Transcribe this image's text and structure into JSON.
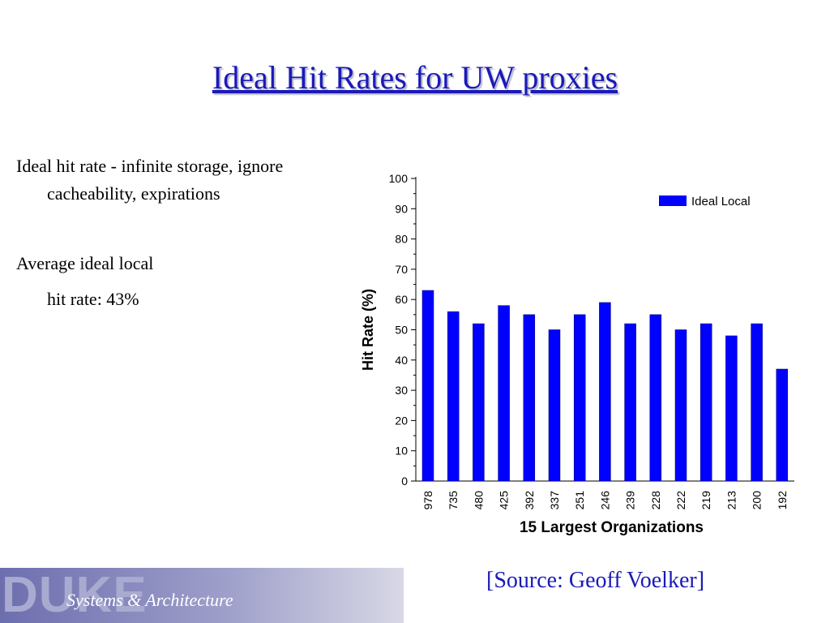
{
  "slide": {
    "title": "Ideal Hit Rates for UW proxies",
    "bullet1_line1": "Ideal hit rate - infinite storage, ignore",
    "bullet1_line2": "cacheability, expirations",
    "bullet2_line1": "Average ideal local",
    "bullet2_line2": "hit rate:  43%",
    "source": "[Source: Geoff Voelker]"
  },
  "footer": {
    "logo": "DUKE",
    "text": "Systems & Architecture"
  },
  "colors": {
    "title": "#1a1ab8",
    "bar": "#0000ff",
    "footer_start": "#6d6eae",
    "footer_end": "#d8d8e6"
  },
  "chart_data": {
    "type": "bar",
    "title": "",
    "xlabel": "15 Largest Organizations",
    "ylabel": "Hit Rate (%)",
    "ylim": [
      0,
      100
    ],
    "yticks": [
      0,
      10,
      20,
      30,
      40,
      50,
      60,
      70,
      80,
      90,
      100
    ],
    "categories": [
      "978",
      "735",
      "480",
      "425",
      "392",
      "337",
      "251",
      "246",
      "239",
      "228",
      "222",
      "219",
      "213",
      "200",
      "192"
    ],
    "series": [
      {
        "name": "Ideal Local",
        "values": [
          63,
          56,
          52,
          58,
          55,
          50,
          55,
          59,
          52,
          55,
          50,
          52,
          48,
          52,
          37
        ]
      }
    ],
    "legend": "top-right",
    "grid": false
  }
}
